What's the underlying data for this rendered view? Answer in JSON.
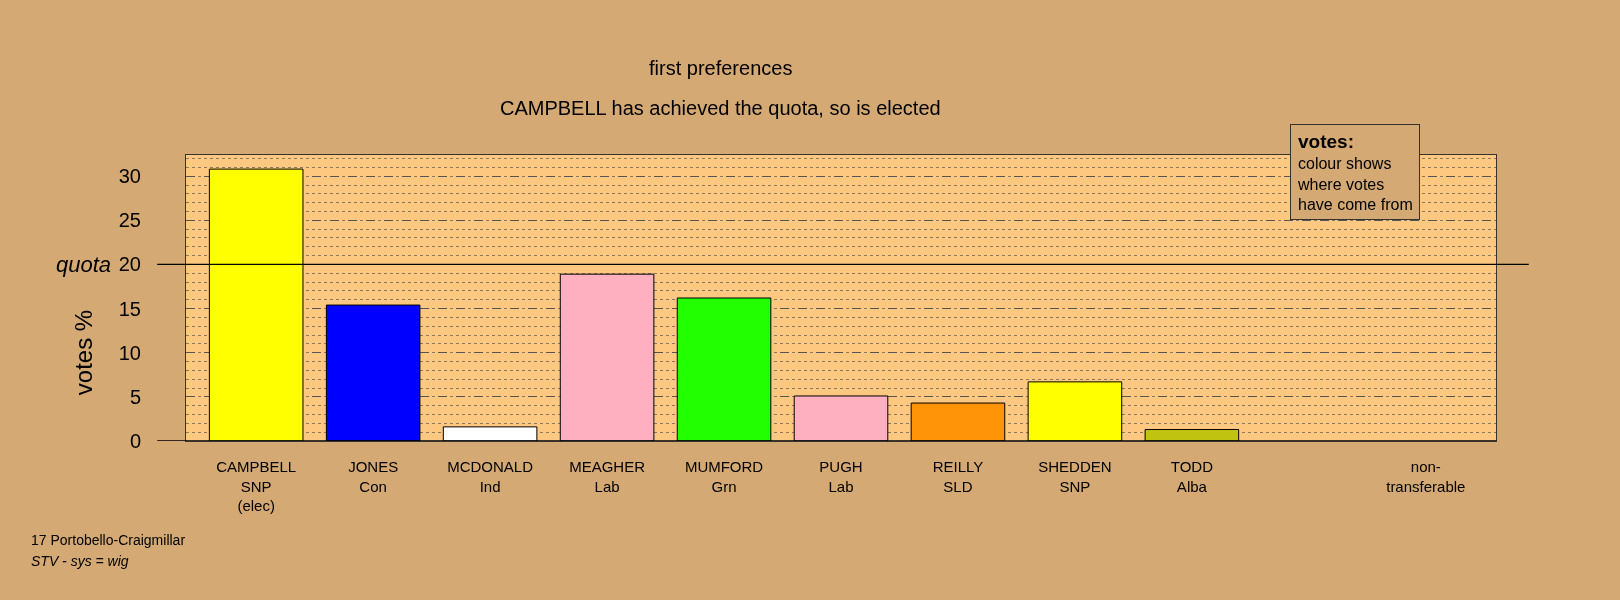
{
  "chart_data": {
    "type": "bar",
    "title": "first preferences",
    "subtitle": "CAMPBELL has achieved the quota, so is elected",
    "ylabel": "votes %",
    "categories": [
      "CAMPBELL\nSNP\n(elec)",
      "JONES\nCon",
      "MCDONALD\nInd",
      "MEAGHER\nLab",
      "MUMFORD\nGrn",
      "PUGH\nLab",
      "REILLY\nSLD",
      "SHEDDEN\nSNP",
      "TODD\nAlba",
      null,
      "non-\ntransferable"
    ],
    "values": [
      30.8,
      15.4,
      1.6,
      18.9,
      16.2,
      5.1,
      4.3,
      6.7,
      1.3,
      null,
      null
    ],
    "colors": [
      "#ffff00",
      "#0000ff",
      "#ffffff",
      "#ffb0c0",
      "#22ff00",
      "#ffb0c0",
      "#ff9408",
      "#ffff00",
      "#c0c410",
      "#ffffff",
      "#ffffff"
    ],
    "ylim": [
      0,
      32.4
    ],
    "yticks": [
      0,
      5,
      10,
      15,
      20,
      25,
      30
    ],
    "grid": "y",
    "ref_lines": [
      {
        "axis": "y",
        "value": 20,
        "label": "quota",
        "color": "#000000",
        "line_style": "solid"
      }
    ],
    "annotations": [
      "votes:",
      "colour shows\nwhere votes\nhave come from",
      "17 Portobello-Craigmillar",
      "STV - sys = wig"
    ]
  }
}
